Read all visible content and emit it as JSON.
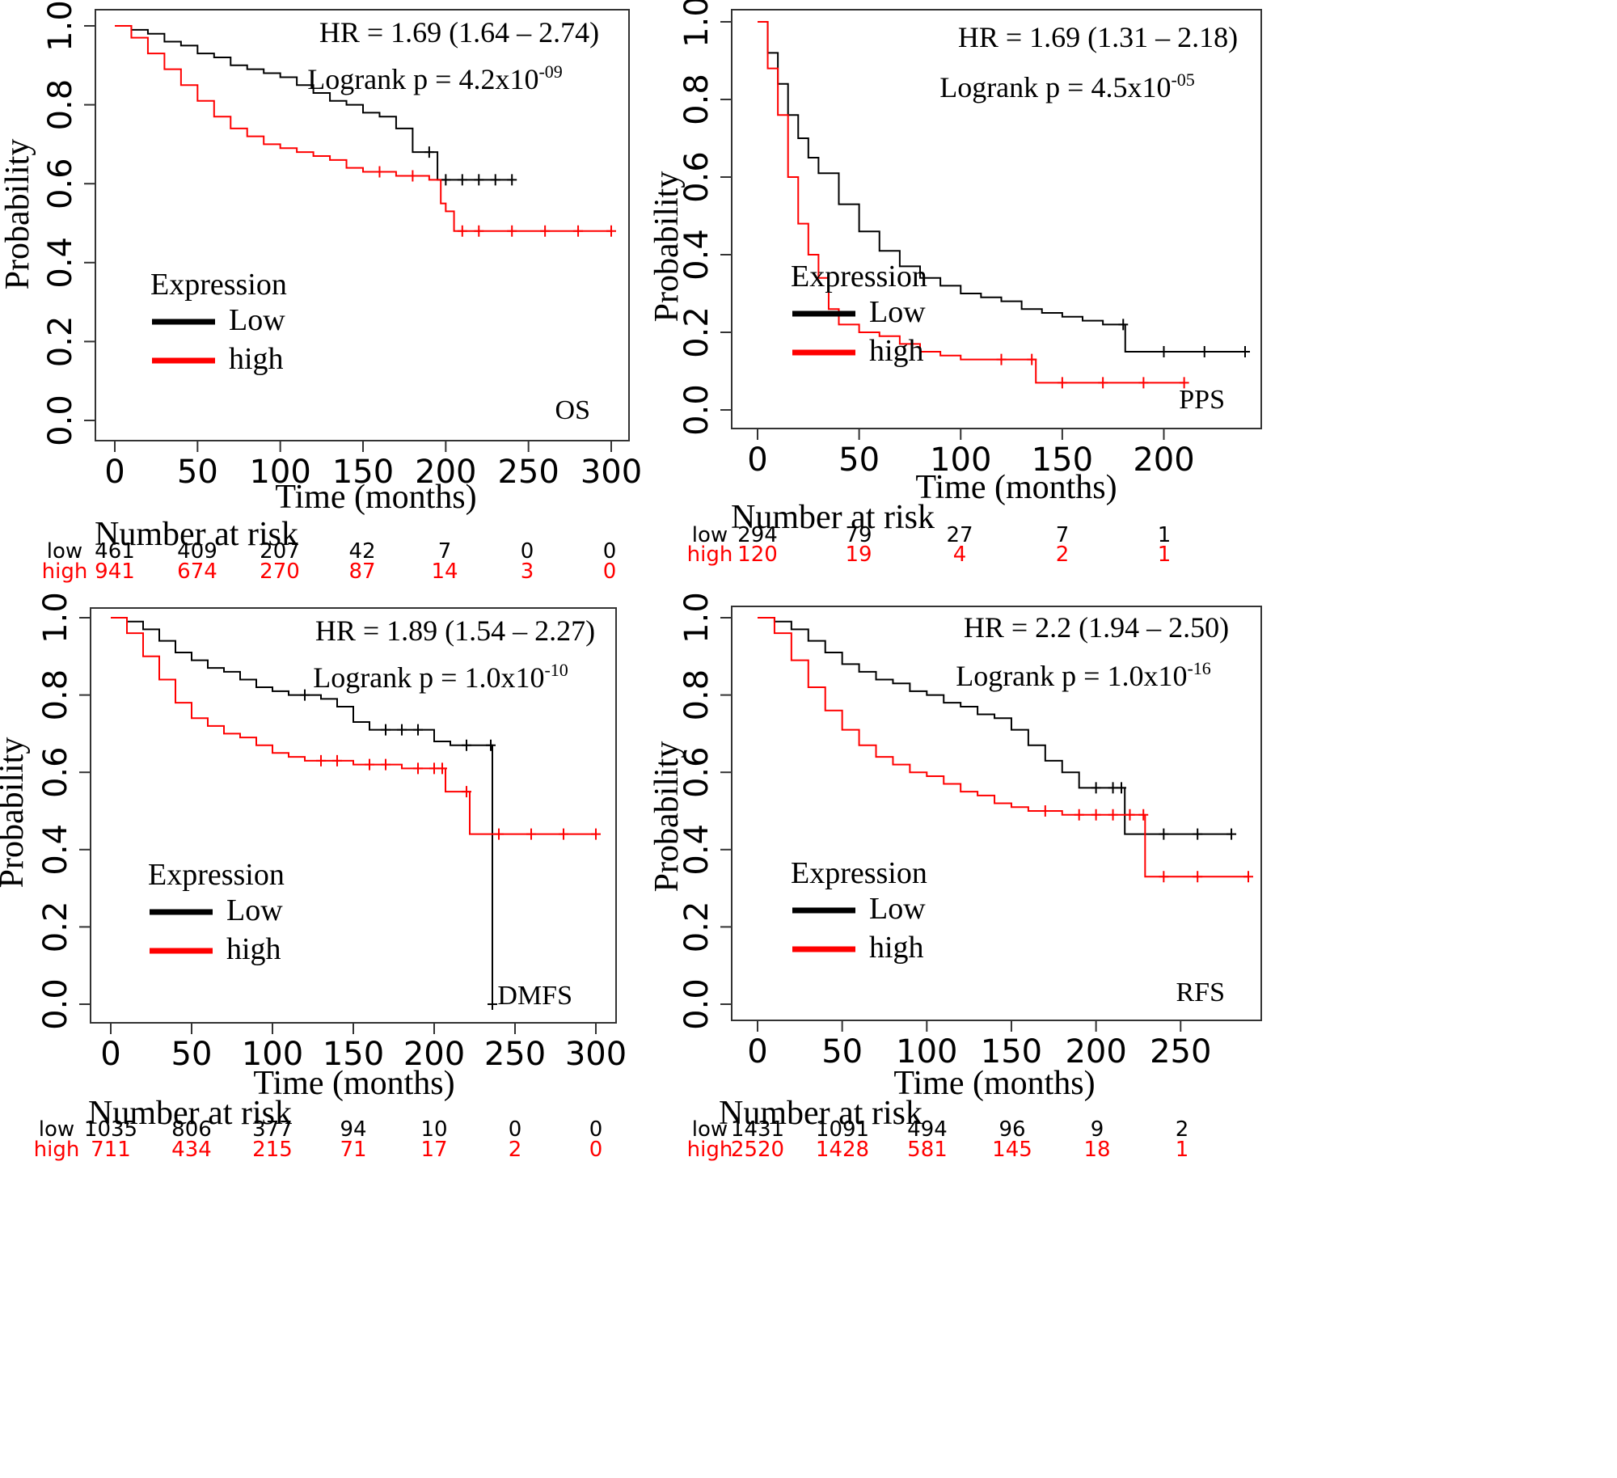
{
  "colors": {
    "low": "#000000",
    "high": "#ff0000",
    "frame": "#333333"
  },
  "chart_data": [
    {
      "type": "line",
      "panel_label": "OS",
      "hr_text": "HR = 1.69 (1.64 – 2.74)",
      "logrank_text": "Logrank p = 4.2x10",
      "logrank_exp": "-09",
      "xlabel": "Time (months)",
      "ylabel": "Probability",
      "xlim": [
        0,
        300
      ],
      "ylim": [
        0,
        1
      ],
      "xticks": [
        0,
        50,
        100,
        150,
        200,
        250,
        300
      ],
      "yticks": [
        0.0,
        0.2,
        0.4,
        0.6,
        0.8,
        1.0
      ],
      "legend_title": "Expression",
      "legend_placement": "bottom-left",
      "series": [
        {
          "name": "Low",
          "color": "#000000",
          "x": [
            0,
            10,
            20,
            30,
            40,
            50,
            60,
            70,
            80,
            90,
            100,
            110,
            120,
            130,
            140,
            150,
            160,
            170,
            180,
            190,
            195,
            200,
            210,
            220,
            230,
            240
          ],
          "y": [
            1.0,
            0.99,
            0.98,
            0.96,
            0.95,
            0.93,
            0.92,
            0.9,
            0.89,
            0.88,
            0.87,
            0.85,
            0.83,
            0.81,
            0.8,
            0.78,
            0.77,
            0.74,
            0.68,
            0.68,
            0.61,
            0.61,
            0.61,
            0.61,
            0.61,
            0.61
          ]
        },
        {
          "name": "high",
          "color": "#ff0000",
          "x": [
            0,
            10,
            20,
            30,
            40,
            50,
            60,
            70,
            80,
            90,
            100,
            110,
            120,
            130,
            140,
            150,
            160,
            170,
            180,
            190,
            197,
            200,
            205,
            210,
            220,
            240,
            260,
            280,
            300
          ],
          "y": [
            1.0,
            0.97,
            0.93,
            0.89,
            0.85,
            0.81,
            0.77,
            0.74,
            0.72,
            0.7,
            0.69,
            0.68,
            0.67,
            0.66,
            0.64,
            0.63,
            0.63,
            0.62,
            0.62,
            0.61,
            0.55,
            0.53,
            0.48,
            0.48,
            0.48,
            0.48,
            0.48,
            0.48,
            0.48
          ]
        }
      ],
      "risk": {
        "title": "Number at risk",
        "x": [
          0,
          50,
          100,
          150,
          200,
          250,
          300
        ],
        "low_label": "low",
        "high_label": "high",
        "low": [
          "461",
          "409",
          "207",
          "42",
          "7",
          "0",
          "0"
        ],
        "high": [
          "941",
          "674",
          "270",
          "87",
          "14",
          "3",
          "0"
        ]
      }
    },
    {
      "type": "line",
      "panel_label": "PPS",
      "hr_text": "HR = 1.69 (1.31 – 2.18)",
      "logrank_text": "Logrank p = 4.5x10",
      "logrank_exp": "-05",
      "xlabel": "Time (months)",
      "ylabel": "Probability",
      "xlim": [
        0,
        240
      ],
      "ylim": [
        0,
        1
      ],
      "xticks": [
        0,
        50,
        100,
        150,
        200
      ],
      "yticks": [
        0.0,
        0.2,
        0.4,
        0.6,
        0.8,
        1.0
      ],
      "legend_title": "Expression",
      "legend_placement": "bottom-left",
      "series": [
        {
          "name": "Low",
          "color": "#000000",
          "x": [
            0,
            5,
            10,
            15,
            20,
            25,
            30,
            40,
            50,
            60,
            70,
            80,
            90,
            100,
            110,
            120,
            130,
            140,
            150,
            160,
            170,
            180,
            181,
            200,
            220,
            240
          ],
          "y": [
            1.0,
            0.92,
            0.84,
            0.76,
            0.7,
            0.65,
            0.61,
            0.53,
            0.46,
            0.41,
            0.37,
            0.34,
            0.32,
            0.3,
            0.29,
            0.28,
            0.26,
            0.25,
            0.24,
            0.23,
            0.22,
            0.22,
            0.15,
            0.15,
            0.15,
            0.15
          ]
        },
        {
          "name": "high",
          "color": "#ff0000",
          "x": [
            0,
            5,
            10,
            15,
            20,
            25,
            30,
            35,
            40,
            50,
            60,
            70,
            80,
            90,
            100,
            120,
            135,
            137,
            150,
            170,
            190,
            210
          ],
          "y": [
            1.0,
            0.88,
            0.76,
            0.6,
            0.48,
            0.4,
            0.34,
            0.26,
            0.22,
            0.2,
            0.19,
            0.17,
            0.15,
            0.14,
            0.13,
            0.13,
            0.13,
            0.07,
            0.07,
            0.07,
            0.07,
            0.07
          ]
        }
      ],
      "risk": {
        "title": "Number at risk",
        "x": [
          0,
          50,
          100,
          150,
          200
        ],
        "low_label": "low",
        "high_label": "high",
        "low": [
          "294",
          "79",
          "27",
          "7",
          "1"
        ],
        "high": [
          "120",
          "19",
          "4",
          "2",
          "1"
        ]
      }
    },
    {
      "type": "line",
      "panel_label": "DMFS",
      "hr_text": "HR = 1.89 (1.54 – 2.27)",
      "logrank_text": "Logrank p = 1.0x10",
      "logrank_exp": "-10",
      "xlabel": "Time (months)",
      "ylabel": "Probability",
      "xlim": [
        0,
        300
      ],
      "ylim": [
        0,
        1
      ],
      "xticks": [
        0,
        50,
        100,
        150,
        200,
        250,
        300
      ],
      "yticks": [
        0.0,
        0.2,
        0.4,
        0.6,
        0.8,
        1.0
      ],
      "legend_title": "Expression",
      "legend_placement": "bottom-left",
      "series": [
        {
          "name": "Low",
          "color": "#000000",
          "x": [
            0,
            10,
            20,
            30,
            40,
            50,
            60,
            70,
            80,
            90,
            100,
            110,
            120,
            130,
            140,
            150,
            160,
            170,
            180,
            190,
            200,
            210,
            220,
            235,
            236
          ],
          "y": [
            1.0,
            0.99,
            0.97,
            0.94,
            0.91,
            0.89,
            0.87,
            0.86,
            0.84,
            0.82,
            0.81,
            0.8,
            0.8,
            0.79,
            0.77,
            0.73,
            0.71,
            0.71,
            0.71,
            0.71,
            0.68,
            0.67,
            0.67,
            0.67,
            0.0
          ]
        },
        {
          "name": "high",
          "color": "#ff0000",
          "x": [
            0,
            10,
            20,
            30,
            40,
            50,
            60,
            70,
            80,
            90,
            100,
            110,
            120,
            130,
            140,
            150,
            160,
            170,
            180,
            190,
            200,
            205,
            207,
            220,
            222,
            240,
            260,
            280,
            300
          ],
          "y": [
            1.0,
            0.96,
            0.9,
            0.84,
            0.78,
            0.74,
            0.72,
            0.7,
            0.69,
            0.67,
            0.65,
            0.64,
            0.63,
            0.63,
            0.63,
            0.62,
            0.62,
            0.62,
            0.61,
            0.61,
            0.61,
            0.61,
            0.55,
            0.55,
            0.44,
            0.44,
            0.44,
            0.44,
            0.44
          ]
        }
      ],
      "risk": {
        "title": "Number at risk",
        "x": [
          0,
          50,
          100,
          150,
          200,
          250,
          300
        ],
        "low_label": "low",
        "high_label": "high",
        "low": [
          "1035",
          "806",
          "377",
          "94",
          "10",
          "0",
          "0"
        ],
        "high": [
          "711",
          "434",
          "215",
          "71",
          "17",
          "2",
          "0"
        ]
      }
    },
    {
      "type": "line",
      "panel_label": "RFS",
      "hr_text": "HR = 2.2 (1.94 – 2.50)",
      "logrank_text": "Logrank p = 1.0x10",
      "logrank_exp": "-16",
      "xlabel": "Time (months)",
      "ylabel": "Probability",
      "xlim": [
        0,
        290
      ],
      "ylim": [
        0,
        1
      ],
      "xticks": [
        0,
        50,
        100,
        150,
        200,
        250
      ],
      "yticks": [
        0.0,
        0.2,
        0.4,
        0.6,
        0.8,
        1.0
      ],
      "legend_title": "Expression",
      "legend_placement": "bottom-left",
      "series": [
        {
          "name": "Low",
          "color": "#000000",
          "x": [
            0,
            10,
            20,
            30,
            40,
            50,
            60,
            70,
            80,
            90,
            100,
            110,
            120,
            130,
            140,
            150,
            160,
            170,
            180,
            190,
            200,
            210,
            215,
            217,
            240,
            260,
            280
          ],
          "y": [
            1.0,
            0.99,
            0.97,
            0.94,
            0.91,
            0.88,
            0.86,
            0.84,
            0.83,
            0.81,
            0.8,
            0.78,
            0.77,
            0.75,
            0.74,
            0.71,
            0.67,
            0.63,
            0.6,
            0.56,
            0.56,
            0.56,
            0.56,
            0.44,
            0.44,
            0.44,
            0.44
          ]
        },
        {
          "name": "high",
          "color": "#ff0000",
          "x": [
            0,
            10,
            20,
            30,
            40,
            50,
            60,
            70,
            80,
            90,
            100,
            110,
            120,
            130,
            140,
            150,
            160,
            170,
            180,
            190,
            200,
            210,
            220,
            228,
            229,
            240,
            260,
            290
          ],
          "y": [
            1.0,
            0.96,
            0.89,
            0.82,
            0.76,
            0.71,
            0.67,
            0.64,
            0.62,
            0.6,
            0.59,
            0.57,
            0.55,
            0.54,
            0.52,
            0.51,
            0.5,
            0.5,
            0.49,
            0.49,
            0.49,
            0.49,
            0.49,
            0.49,
            0.33,
            0.33,
            0.33,
            0.33
          ]
        }
      ],
      "risk": {
        "title": "Number at risk",
        "x": [
          0,
          50,
          100,
          150,
          200,
          250
        ],
        "low_label": "low",
        "high_label": "high",
        "low": [
          "1431",
          "1091",
          "494",
          "96",
          "9",
          "2"
        ],
        "high": [
          "2520",
          "1428",
          "581",
          "145",
          "18",
          "1"
        ]
      }
    }
  ]
}
